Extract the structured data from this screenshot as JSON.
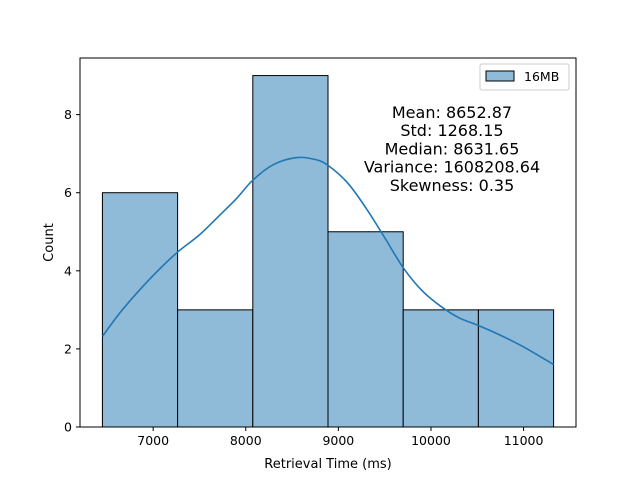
{
  "chart_data": {
    "type": "histogram",
    "bins": [
      {
        "start": 6452,
        "end": 7264,
        "count": 6
      },
      {
        "start": 7264,
        "end": 8076,
        "count": 3
      },
      {
        "start": 8076,
        "end": 8888,
        "count": 9
      },
      {
        "start": 8888,
        "end": 9700,
        "count": 5
      },
      {
        "start": 9700,
        "end": 10512,
        "count": 3
      },
      {
        "start": 10512,
        "end": 11324,
        "count": 3
      }
    ],
    "kde": {
      "x": [
        6452,
        6650,
        6850,
        7050,
        7264,
        7500,
        7700,
        7900,
        8076,
        8300,
        8550,
        8750,
        8888,
        9100,
        9300,
        9500,
        9700,
        9900,
        10100,
        10300,
        10512,
        10750,
        11000,
        11324
      ],
      "y": [
        2.32,
        2.95,
        3.5,
        4.0,
        4.48,
        4.92,
        5.38,
        5.85,
        6.32,
        6.72,
        6.9,
        6.85,
        6.7,
        6.25,
        5.6,
        4.85,
        4.08,
        3.5,
        3.1,
        2.8,
        2.6,
        2.35,
        2.05,
        1.6
      ]
    },
    "series_name": "16MB",
    "xlabel": "Retrieval Time (ms)",
    "ylabel": "Count",
    "xlim": [
      6210,
      11566
    ],
    "ylim": [
      0,
      9.45
    ],
    "xticks": [
      7000,
      8000,
      9000,
      10000,
      11000
    ],
    "yticks": [
      0,
      2,
      4,
      6,
      8
    ],
    "legend_position": "top-right",
    "grid": false,
    "colors": {
      "bar_fill": "#8fbbd9",
      "bar_edge": "#000000",
      "kde_line": "#1f77b4"
    },
    "annotation_lines": [
      "Mean: 8652.87",
      "Std: 1268.15",
      "Median: 8631.65",
      "Variance: 1608208.64",
      "Skewness: 0.35"
    ]
  }
}
